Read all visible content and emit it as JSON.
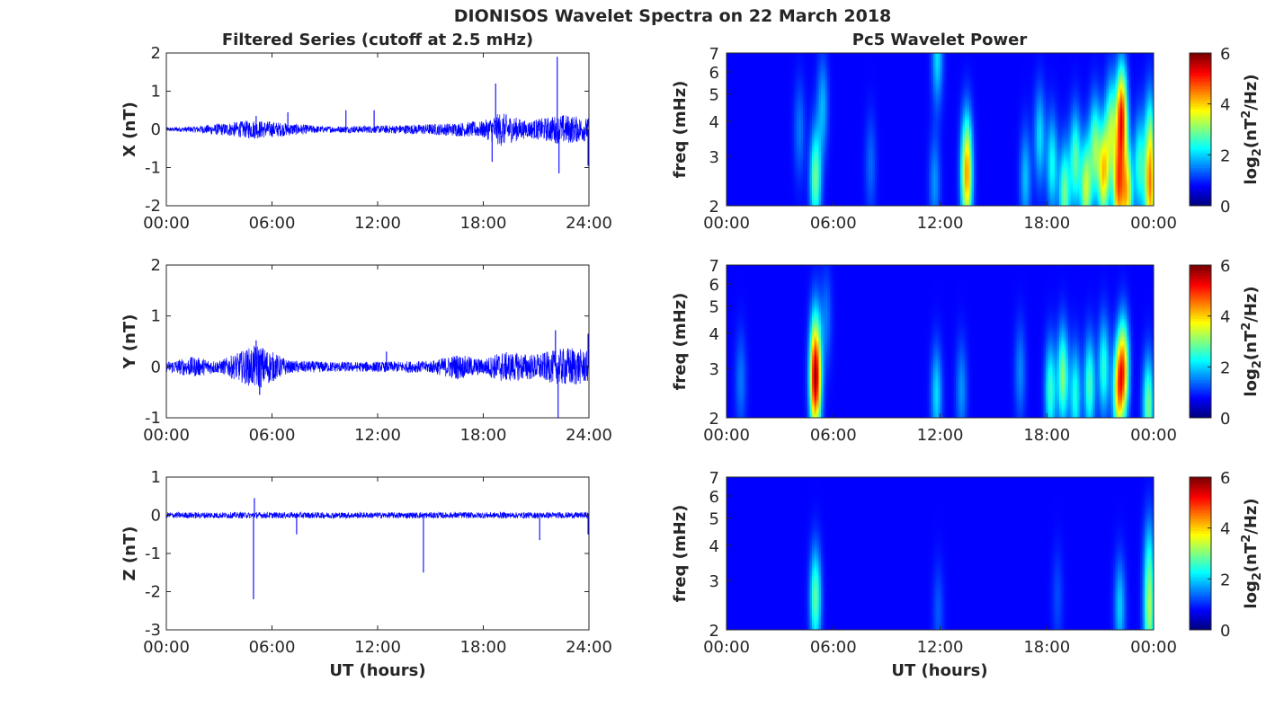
{
  "figure": {
    "title": "DIONISOS Wavelet Spectra on 22 March 2018",
    "left_title": "Filtered Series (cutoff at 2.5 mHz)",
    "right_title": "Pc5 Wavelet Power",
    "xlabel": "UT (hours)"
  },
  "chart_data": [
    {
      "type": "line",
      "component": "X",
      "ylabel": "X (nT)",
      "xlim": [
        0,
        24
      ],
      "ylim": [
        -2,
        2
      ],
      "x_ticks": [
        "00:00",
        "06:00",
        "12:00",
        "18:00",
        "24:00"
      ],
      "y_ticks": [
        "2",
        "1",
        "0",
        "-1",
        "-2"
      ],
      "line_color": "#0000ff",
      "baseline_amplitude": [
        {
          "x": 0,
          "a": 0.05
        },
        {
          "x": 1.5,
          "a": 0.08
        },
        {
          "x": 5,
          "a": 0.25
        },
        {
          "x": 9,
          "a": 0.08
        },
        {
          "x": 12,
          "a": 0.1
        },
        {
          "x": 15.5,
          "a": 0.15
        },
        {
          "x": 18,
          "a": 0.22
        },
        {
          "x": 19,
          "a": 0.45
        },
        {
          "x": 20.5,
          "a": 0.22
        },
        {
          "x": 22.5,
          "a": 0.4
        },
        {
          "x": 24,
          "a": 0.3
        }
      ],
      "spikes": [
        {
          "x": 5.1,
          "y": 0.35
        },
        {
          "x": 6.9,
          "y": 0.45
        },
        {
          "x": 10.2,
          "y": 0.5
        },
        {
          "x": 11.8,
          "y": 0.5
        },
        {
          "x": 18.5,
          "y": -0.85
        },
        {
          "x": 18.7,
          "y": 1.2
        },
        {
          "x": 22.2,
          "y": 1.9
        },
        {
          "x": 22.3,
          "y": -1.15
        },
        {
          "x": 23.95,
          "y": -0.95
        }
      ]
    },
    {
      "type": "line",
      "component": "Y",
      "ylabel": "Y (nT)",
      "xlim": [
        0,
        24
      ],
      "ylim": [
        -1,
        2
      ],
      "x_ticks": [
        "00:00",
        "06:00",
        "12:00",
        "18:00",
        "24:00"
      ],
      "y_ticks": [
        "2",
        "1",
        "0",
        "-1"
      ],
      "line_color": "#0000ff",
      "baseline_amplitude": [
        {
          "x": 0,
          "a": 0.1
        },
        {
          "x": 1.5,
          "a": 0.2
        },
        {
          "x": 3,
          "a": 0.12
        },
        {
          "x": 5.2,
          "a": 0.45
        },
        {
          "x": 7,
          "a": 0.12
        },
        {
          "x": 10,
          "a": 0.1
        },
        {
          "x": 12,
          "a": 0.1
        },
        {
          "x": 15,
          "a": 0.12
        },
        {
          "x": 16.5,
          "a": 0.25
        },
        {
          "x": 18,
          "a": 0.15
        },
        {
          "x": 19,
          "a": 0.3
        },
        {
          "x": 21,
          "a": 0.25
        },
        {
          "x": 23,
          "a": 0.4
        },
        {
          "x": 24,
          "a": 0.3
        }
      ],
      "spikes": [
        {
          "x": 5.1,
          "y": 0.52
        },
        {
          "x": 5.3,
          "y": -0.55
        },
        {
          "x": 12.5,
          "y": 0.3
        },
        {
          "x": 22.1,
          "y": 0.72
        },
        {
          "x": 22.25,
          "y": -1.0
        },
        {
          "x": 23.95,
          "y": 0.65
        }
      ]
    },
    {
      "type": "line",
      "component": "Z",
      "ylabel": "Z (nT)",
      "xlim": [
        0,
        24
      ],
      "ylim": [
        -3,
        1
      ],
      "x_ticks": [
        "00:00",
        "06:00",
        "12:00",
        "18:00",
        "24:00"
      ],
      "y_ticks": [
        "1",
        "0",
        "-1",
        "-2",
        "-3"
      ],
      "line_color": "#0000ff",
      "baseline_amplitude": [
        {
          "x": 0,
          "a": 0.08
        },
        {
          "x": 24,
          "a": 0.08
        }
      ],
      "spikes": [
        {
          "x": 4.95,
          "y": -2.2
        },
        {
          "x": 5.0,
          "y": 0.45
        },
        {
          "x": 7.4,
          "y": -0.5
        },
        {
          "x": 14.6,
          "y": -1.5
        },
        {
          "x": 21.2,
          "y": -0.65
        },
        {
          "x": 23.95,
          "y": -0.5
        }
      ]
    },
    {
      "type": "heatmap",
      "component": "X",
      "ylabel": "freq (mHz)",
      "xlim": [
        0,
        24
      ],
      "ylim": [
        2,
        7
      ],
      "y_scale": "log",
      "x_ticks": [
        "00:00",
        "06:00",
        "12:00",
        "18:00",
        "00:00"
      ],
      "y_ticks": [
        "7",
        "6",
        "5",
        "4",
        "3",
        "2"
      ],
      "colorbar": {
        "label": "log2(nT2/Hz)",
        "range": [
          0,
          6
        ],
        "ticks": [
          "6",
          "4",
          "2",
          "0"
        ],
        "colormap": "jet"
      },
      "power_blobs": [
        {
          "t": 5.0,
          "f": 2.5,
          "p": 2.5
        },
        {
          "t": 5.4,
          "f": 4.5,
          "p": 1.2
        },
        {
          "t": 4.1,
          "f": 3.7,
          "p": 0.8
        },
        {
          "t": 8.1,
          "f": 2.8,
          "p": 0.7
        },
        {
          "t": 11.7,
          "f": 2.4,
          "p": 1.0
        },
        {
          "t": 11.85,
          "f": 6.8,
          "p": 1.5
        },
        {
          "t": 13.5,
          "f": 3.0,
          "p": 2.6
        },
        {
          "t": 13.5,
          "f": 2.2,
          "p": 2.2
        },
        {
          "t": 16.8,
          "f": 2.5,
          "p": 1.3
        },
        {
          "t": 17.6,
          "f": 3.5,
          "p": 1.5
        },
        {
          "t": 18.3,
          "f": 2.8,
          "p": 1.8
        },
        {
          "t": 19.0,
          "f": 2.2,
          "p": 2.5
        },
        {
          "t": 19.6,
          "f": 2.9,
          "p": 2.3
        },
        {
          "t": 20.2,
          "f": 2.3,
          "p": 3.0
        },
        {
          "t": 20.7,
          "f": 3.2,
          "p": 2.5
        },
        {
          "t": 21.2,
          "f": 2.6,
          "p": 3.6
        },
        {
          "t": 21.6,
          "f": 3.8,
          "p": 2.5
        },
        {
          "t": 22.0,
          "f": 2.3,
          "p": 4.0
        },
        {
          "t": 22.2,
          "f": 4.2,
          "p": 4.8
        },
        {
          "t": 22.5,
          "f": 2.2,
          "p": 3.5
        },
        {
          "t": 23.2,
          "f": 2.8,
          "p": 2.0
        },
        {
          "t": 23.8,
          "f": 2.2,
          "p": 3.6
        },
        {
          "t": 23.8,
          "f": 3.5,
          "p": 2.2
        }
      ]
    },
    {
      "type": "heatmap",
      "component": "Y",
      "ylabel": "freq (mHz)",
      "xlim": [
        0,
        24
      ],
      "ylim": [
        2,
        7
      ],
      "y_scale": "log",
      "x_ticks": [
        "00:00",
        "06:00",
        "12:00",
        "18:00",
        "00:00"
      ],
      "y_ticks": [
        "7",
        "6",
        "5",
        "4",
        "3",
        "2"
      ],
      "colorbar": {
        "label": "log2(nT2/Hz)",
        "range": [
          0,
          6
        ],
        "ticks": [
          "6",
          "4",
          "2",
          "0"
        ],
        "colormap": "jet"
      },
      "power_blobs": [
        {
          "t": 0.8,
          "f": 2.7,
          "p": 0.8
        },
        {
          "t": 5.0,
          "f": 2.6,
          "p": 4.7
        },
        {
          "t": 5.0,
          "f": 3.6,
          "p": 2.0
        },
        {
          "t": 5.6,
          "f": 4.5,
          "p": 0.8
        },
        {
          "t": 11.8,
          "f": 2.4,
          "p": 1.5
        },
        {
          "t": 13.2,
          "f": 2.5,
          "p": 1.0
        },
        {
          "t": 16.5,
          "f": 2.9,
          "p": 0.9
        },
        {
          "t": 18.2,
          "f": 2.5,
          "p": 2.1
        },
        {
          "t": 18.9,
          "f": 2.8,
          "p": 2.6
        },
        {
          "t": 19.6,
          "f": 2.4,
          "p": 1.9
        },
        {
          "t": 20.4,
          "f": 2.6,
          "p": 2.2
        },
        {
          "t": 21.2,
          "f": 3.0,
          "p": 2.0
        },
        {
          "t": 22.0,
          "f": 2.5,
          "p": 3.2
        },
        {
          "t": 22.3,
          "f": 3.0,
          "p": 3.8
        },
        {
          "t": 23.7,
          "f": 2.2,
          "p": 2.5
        }
      ]
    },
    {
      "type": "heatmap",
      "component": "Z",
      "ylabel": "freq (mHz)",
      "xlim": [
        0,
        24
      ],
      "ylim": [
        2,
        7
      ],
      "y_scale": "log",
      "x_ticks": [
        "00:00",
        "06:00",
        "12:00",
        "18:00",
        "00:00"
      ],
      "y_ticks": [
        "7",
        "6",
        "5",
        "4",
        "3",
        "2"
      ],
      "colorbar": {
        "label": "log2(nT2/Hz)",
        "range": [
          0,
          6
        ],
        "ticks": [
          "6",
          "4",
          "2",
          "0"
        ],
        "colormap": "jet"
      },
      "power_blobs": [
        {
          "t": 5.0,
          "f": 2.6,
          "p": 2.4
        },
        {
          "t": 11.9,
          "f": 2.3,
          "p": 0.6
        },
        {
          "t": 18.6,
          "f": 2.6,
          "p": 0.5
        },
        {
          "t": 22.1,
          "f": 2.4,
          "p": 1.4
        },
        {
          "t": 23.75,
          "f": 2.2,
          "p": 2.4
        },
        {
          "t": 23.75,
          "f": 3.5,
          "p": 1.5
        }
      ]
    }
  ]
}
